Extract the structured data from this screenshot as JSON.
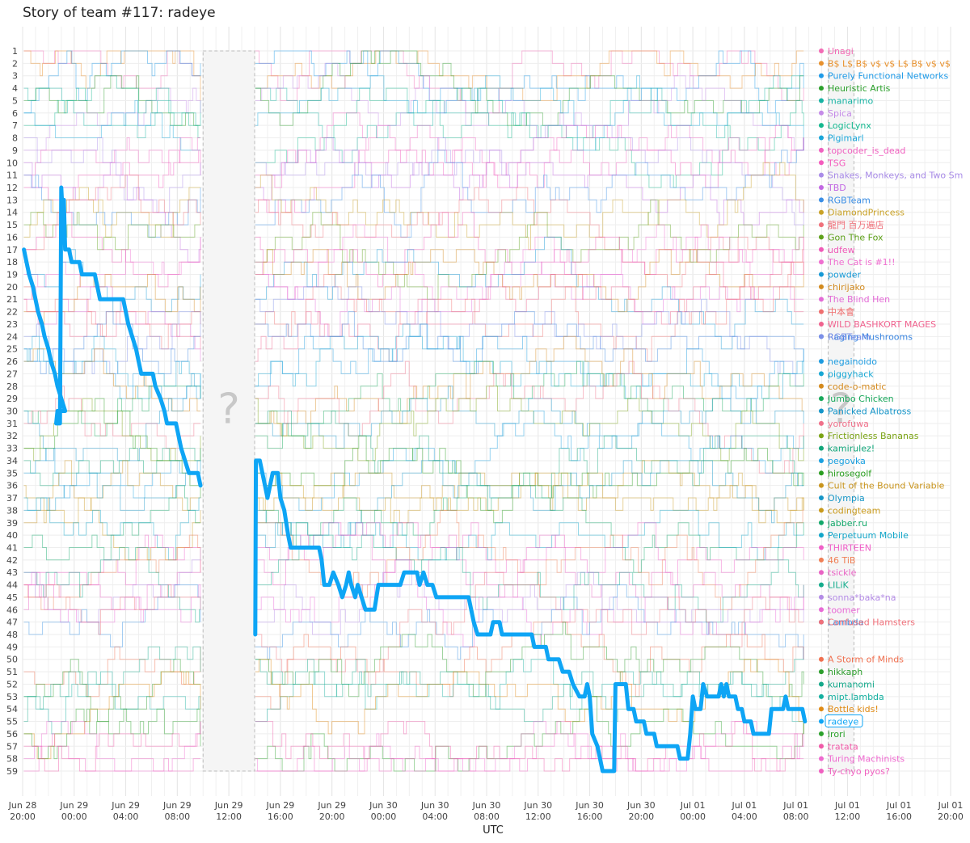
{
  "chart_data": {
    "type": "line",
    "title": "Story of team #117: radeye",
    "xlabel": "UTC",
    "ylabel": "",
    "y_ranks": [
      1,
      59
    ],
    "y_axis_inverted": true,
    "grid": true,
    "x_axis": {
      "start": "Jun 28 20:00",
      "end": "Jul 01 20:00",
      "tick_labels": [
        [
          "Jun 28",
          "20:00"
        ],
        [
          "Jun 29",
          "00:00"
        ],
        [
          "Jun 29",
          "04:00"
        ],
        [
          "Jun 29",
          "08:00"
        ],
        [
          "Jun 29",
          "12:00"
        ],
        [
          "Jun 29",
          "16:00"
        ],
        [
          "Jun 29",
          "20:00"
        ],
        [
          "Jun 30",
          "00:00"
        ],
        [
          "Jun 30",
          "04:00"
        ],
        [
          "Jun 30",
          "08:00"
        ],
        [
          "Jun 30",
          "12:00"
        ],
        [
          "Jun 30",
          "16:00"
        ],
        [
          "Jun 30",
          "20:00"
        ],
        [
          "Jul 01",
          "00:00"
        ],
        [
          "Jul 01",
          "04:00"
        ],
        [
          "Jul 01",
          "08:00"
        ],
        [
          "Jul 01",
          "12:00"
        ],
        [
          "Jul 01",
          "16:00"
        ],
        [
          "Jul 01",
          "20:00"
        ]
      ]
    },
    "gaps": [
      {
        "from_hours": 14.0,
        "to_hours": 18.0,
        "marker": "?"
      },
      {
        "from_hours": 62.5,
        "to_hours": 64.5,
        "marker": "?"
      }
    ],
    "highlight_team": {
      "name": "radeye",
      "color": "#0ea5f5",
      "series": [
        [
          0.1,
          17
        ],
        [
          0.3,
          18
        ],
        [
          0.5,
          19
        ],
        [
          0.8,
          20
        ],
        [
          1.0,
          21
        ],
        [
          1.2,
          22
        ],
        [
          1.5,
          23
        ],
        [
          1.7,
          24
        ],
        [
          2.0,
          25
        ],
        [
          2.2,
          26
        ],
        [
          2.5,
          27
        ],
        [
          2.7,
          28
        ],
        [
          3.0,
          29
        ],
        [
          3.3,
          30
        ],
        [
          2.7,
          30
        ],
        [
          2.6,
          31
        ],
        [
          2.9,
          31
        ],
        [
          3.0,
          12
        ],
        [
          3.1,
          14
        ],
        [
          3.2,
          13
        ],
        [
          3.3,
          17
        ],
        [
          3.6,
          17
        ],
        [
          3.8,
          18
        ],
        [
          4.4,
          18
        ],
        [
          4.6,
          19
        ],
        [
          5.6,
          19
        ],
        [
          5.8,
          20
        ],
        [
          6.0,
          21
        ],
        [
          7.8,
          21
        ],
        [
          8.0,
          22
        ],
        [
          8.2,
          23
        ],
        [
          8.5,
          24
        ],
        [
          8.8,
          25
        ],
        [
          9.0,
          26
        ],
        [
          9.2,
          27
        ],
        [
          10.1,
          27
        ],
        [
          10.3,
          28
        ],
        [
          10.7,
          29
        ],
        [
          11.0,
          30
        ],
        [
          11.2,
          31
        ],
        [
          11.9,
          31
        ],
        [
          12.1,
          32
        ],
        [
          12.3,
          33
        ],
        [
          12.6,
          34
        ],
        [
          12.9,
          35
        ],
        [
          13.6,
          35
        ],
        [
          13.8,
          36
        ],
        [
          18.05,
          48
        ],
        [
          18.1,
          34
        ],
        [
          18.4,
          34
        ],
        [
          18.6,
          35
        ],
        [
          18.8,
          36
        ],
        [
          19.0,
          37
        ],
        [
          19.2,
          36
        ],
        [
          19.4,
          35
        ],
        [
          19.8,
          35
        ],
        [
          20.0,
          37
        ],
        [
          20.3,
          38
        ],
        [
          20.6,
          40
        ],
        [
          20.8,
          41
        ],
        [
          23.0,
          41
        ],
        [
          23.2,
          42
        ],
        [
          23.4,
          44
        ],
        [
          23.8,
          44
        ],
        [
          24.1,
          43
        ],
        [
          24.5,
          44
        ],
        [
          24.8,
          45
        ],
        [
          25.1,
          44
        ],
        [
          25.3,
          43
        ],
        [
          25.5,
          44
        ],
        [
          25.8,
          45
        ],
        [
          26.0,
          44
        ],
        [
          26.3,
          45
        ],
        [
          26.6,
          46
        ],
        [
          27.3,
          46
        ],
        [
          27.6,
          44
        ],
        [
          29.3,
          44
        ],
        [
          29.6,
          43
        ],
        [
          30.6,
          43
        ],
        [
          30.8,
          44
        ],
        [
          31.1,
          43
        ],
        [
          31.4,
          44
        ],
        [
          31.8,
          44
        ],
        [
          32.1,
          45
        ],
        [
          34.6,
          45
        ],
        [
          34.8,
          46
        ],
        [
          35.0,
          47
        ],
        [
          35.3,
          48
        ],
        [
          36.3,
          48
        ],
        [
          36.5,
          47
        ],
        [
          37.0,
          47
        ],
        [
          37.2,
          48
        ],
        [
          39.5,
          48
        ],
        [
          39.7,
          49
        ],
        [
          40.6,
          49
        ],
        [
          40.8,
          50
        ],
        [
          41.6,
          50
        ],
        [
          41.9,
          51
        ],
        [
          42.4,
          51
        ],
        [
          42.7,
          52
        ],
        [
          43.2,
          53
        ],
        [
          43.6,
          53
        ],
        [
          43.8,
          52
        ],
        [
          44.0,
          53
        ],
        [
          44.2,
          56
        ],
        [
          44.6,
          57
        ],
        [
          44.8,
          58
        ],
        [
          45.0,
          59
        ],
        [
          45.9,
          59
        ],
        [
          46.0,
          52
        ],
        [
          46.8,
          52
        ],
        [
          47.0,
          54
        ],
        [
          47.4,
          54
        ],
        [
          47.6,
          55
        ],
        [
          48.2,
          55
        ],
        [
          48.4,
          56
        ],
        [
          49.0,
          56
        ],
        [
          49.2,
          57
        ],
        [
          50.8,
          57
        ],
        [
          51.0,
          58
        ],
        [
          51.6,
          58
        ],
        [
          51.8,
          56
        ],
        [
          52.0,
          53
        ],
        [
          52.2,
          54
        ],
        [
          52.6,
          54
        ],
        [
          52.8,
          52
        ],
        [
          53.1,
          53
        ],
        [
          54.0,
          53
        ],
        [
          54.2,
          52
        ],
        [
          54.4,
          53
        ],
        [
          54.6,
          52
        ],
        [
          54.8,
          53
        ],
        [
          55.3,
          53
        ],
        [
          55.5,
          54
        ],
        [
          55.8,
          54
        ],
        [
          56.0,
          55
        ],
        [
          56.5,
          55
        ],
        [
          56.7,
          56
        ],
        [
          57.9,
          56
        ],
        [
          58.1,
          54
        ],
        [
          59.0,
          54
        ],
        [
          59.2,
          53
        ],
        [
          59.4,
          54
        ],
        [
          60.5,
          54
        ],
        [
          60.7,
          55
        ]
      ]
    },
    "teams": [
      {
        "rank": 1,
        "name": "Unagi",
        "color": "#f26bb5"
      },
      {
        "rank": 2,
        "name": "B$ L$ B$ v$ v$ L$ B$ v$ v$",
        "color": "#e8912d"
      },
      {
        "rank": 3,
        "name": "Purely Functional Networks",
        "color": "#1f9be8"
      },
      {
        "rank": 4,
        "name": "Heuristic Artis",
        "color": "#2ca02c"
      },
      {
        "rank": 5,
        "name": "manarimo",
        "color": "#17b3a3"
      },
      {
        "rank": 6,
        "name": "Spica",
        "color": "#c58be8"
      },
      {
        "rank": 7,
        "name": "LogicLynx",
        "color": "#14b88f"
      },
      {
        "rank": 8,
        "name": "Pigimarl",
        "color": "#19a6d9"
      },
      {
        "rank": 9,
        "name": "topcoder_is_dead",
        "color": "#f062c0"
      },
      {
        "rank": 10,
        "name": "TSG",
        "color": "#f45bbd"
      },
      {
        "rank": 11,
        "name": "Snakes, Monkeys, and Two Sm",
        "color": "#a98ce8"
      },
      {
        "rank": 12,
        "name": "TBD",
        "color": "#c268e3"
      },
      {
        "rank": 13,
        "name": "RGBTeam",
        "color": "#3a8ee6"
      },
      {
        "rank": 14,
        "name": "DiamondPrincess",
        "color": "#c9a227"
      },
      {
        "rank": 15,
        "name": "龍門 百万遍店",
        "color": "#f0707a"
      },
      {
        "rank": 16,
        "name": "Gon The Fox",
        "color": "#5ea11a"
      },
      {
        "rank": 17,
        "name": "udfew",
        "color": "#f05ab8"
      },
      {
        "rank": 18,
        "name": "The Cat is #1!!",
        "color": "#ef6fd0"
      },
      {
        "rank": 19,
        "name": "powder",
        "color": "#1699d6"
      },
      {
        "rank": 20,
        "name": "chirijako",
        "color": "#d28a1e"
      },
      {
        "rank": 21,
        "name": "The Blind Hen",
        "color": "#e36ad6"
      },
      {
        "rank": 22,
        "name": "中本會",
        "color": "#ef6f6f"
      },
      {
        "rank": 23,
        "name": "WILD BASHKORT MAGES",
        "color": "#f0638f"
      },
      {
        "rank": 24,
        "name": "Raging Mushrooms",
        "color": "#3b86e0"
      },
      {
        "rank": 24,
        "name": "RGBTeam",
        "color": "#7c8fe8"
      },
      {
        "rank": 26,
        "name": "negainoido",
        "color": "#1c9be0"
      },
      {
        "rank": 27,
        "name": "piggyhack",
        "color": "#16a7d4"
      },
      {
        "rank": 28,
        "name": "code-o-matic",
        "color": "#d4891c"
      },
      {
        "rank": 29,
        "name": "Jumbo Chicken",
        "color": "#17a85a"
      },
      {
        "rank": 30,
        "name": "Panicked Albatross",
        "color": "#1495c9"
      },
      {
        "rank": 31,
        "name": "yorofuwa",
        "color": "#f0708a"
      },
      {
        "rank": 32,
        "name": "Frictionless Bananas",
        "color": "#7aa314"
      },
      {
        "rank": 33,
        "name": "kamirulez!",
        "color": "#11a67a"
      },
      {
        "rank": 34,
        "name": "pegovka",
        "color": "#1aa0e0"
      },
      {
        "rank": 35,
        "name": "hirosegolf",
        "color": "#2a9e20"
      },
      {
        "rank": 36,
        "name": "Cult of the Bound Variable",
        "color": "#c9951e"
      },
      {
        "rank": 37,
        "name": "Olympia",
        "color": "#1596c7"
      },
      {
        "rank": 38,
        "name": "codingteam",
        "color": "#c99a1c"
      },
      {
        "rank": 39,
        "name": "jabber.ru",
        "color": "#12a86a"
      },
      {
        "rank": 40,
        "name": "Perpetuum Mobile",
        "color": "#12a6c9"
      },
      {
        "rank": 41,
        "name": "THIRTEEN",
        "color": "#f060c8"
      },
      {
        "rank": 42,
        "name": "46 TiB",
        "color": "#f07f55"
      },
      {
        "rank": 43,
        "name": "tsickle",
        "color": "#e962c4"
      },
      {
        "rank": 44,
        "name": "LILiK",
        "color": "#14ac8c"
      },
      {
        "rank": 45,
        "name": "sonna*baka*na",
        "color": "#b48be6"
      },
      {
        "rank": 46,
        "name": "toomer",
        "color": "#e86bd6"
      },
      {
        "rank": 47,
        "name": "Lambda",
        "color": "#3a92e4"
      },
      {
        "rank": 47,
        "name": "Confused Hamsters",
        "color": "#f0707a"
      },
      {
        "rank": 50,
        "name": "A Storm of Minds",
        "color": "#f07050"
      },
      {
        "rank": 51,
        "name": "hikkaph",
        "color": "#2c9e2c"
      },
      {
        "rank": 52,
        "name": "kumanomi",
        "color": "#14a88a"
      },
      {
        "rank": 53,
        "name": "mipt.lambda",
        "color": "#14b0a0"
      },
      {
        "rank": 54,
        "name": "Bottle kids!",
        "color": "#e08a14"
      },
      {
        "rank": 55,
        "name": "radeye",
        "color": "#0ea5f5"
      },
      {
        "rank": 56,
        "name": "irori",
        "color": "#2ba12b"
      },
      {
        "rank": 57,
        "name": "tratata",
        "color": "#f05aa8"
      },
      {
        "rank": 58,
        "name": "Turing Machinists",
        "color": "#ef6ad0"
      },
      {
        "rank": 59,
        "name": "Ty-chyo pyos?",
        "color": "#f060c0"
      }
    ]
  }
}
